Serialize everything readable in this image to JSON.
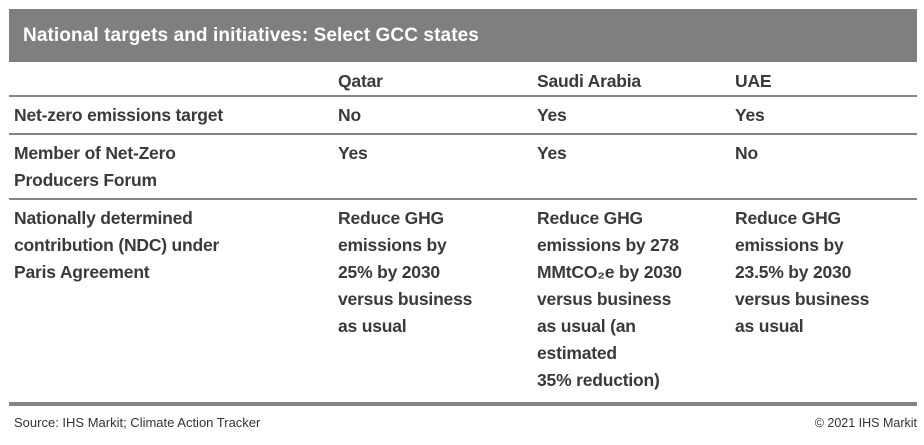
{
  "title": "National targets and initiatives: Select GCC states",
  "table": {
    "columns": [
      "Qatar",
      "Saudi Arabia",
      "UAE"
    ],
    "rows": [
      {
        "label": "Net-zero emissions target",
        "qatar": "No",
        "saudi_arabia": "Yes",
        "uae": "Yes"
      },
      {
        "label": "Member of Net-Zero\nProducers Forum",
        "qatar": "Yes",
        "saudi_arabia": "Yes",
        "uae": "No"
      },
      {
        "label": "Nationally determined\ncontribution (NDC) under\nParis Agreement",
        "qatar": "Reduce GHG\nemissions by\n25% by 2030\nversus business\nas usual",
        "saudi_arabia": "Reduce GHG\nemissions by 278\nMMtCO₂e by 2030\nversus business\nas usual (an\nestimated\n35% reduction)",
        "uae": "Reduce GHG\nemissions by\n23.5% by 2030\nversus business\nas usual"
      }
    ]
  },
  "footer": {
    "source": "Source: IHS Markit; Climate Action Tracker",
    "copyright": "© 2021 IHS Markit"
  },
  "colors": {
    "title_bar_bg": "#7f7f7f",
    "title_text": "#ffffff",
    "body_text": "#3a3a3a",
    "rule": "#848484"
  }
}
